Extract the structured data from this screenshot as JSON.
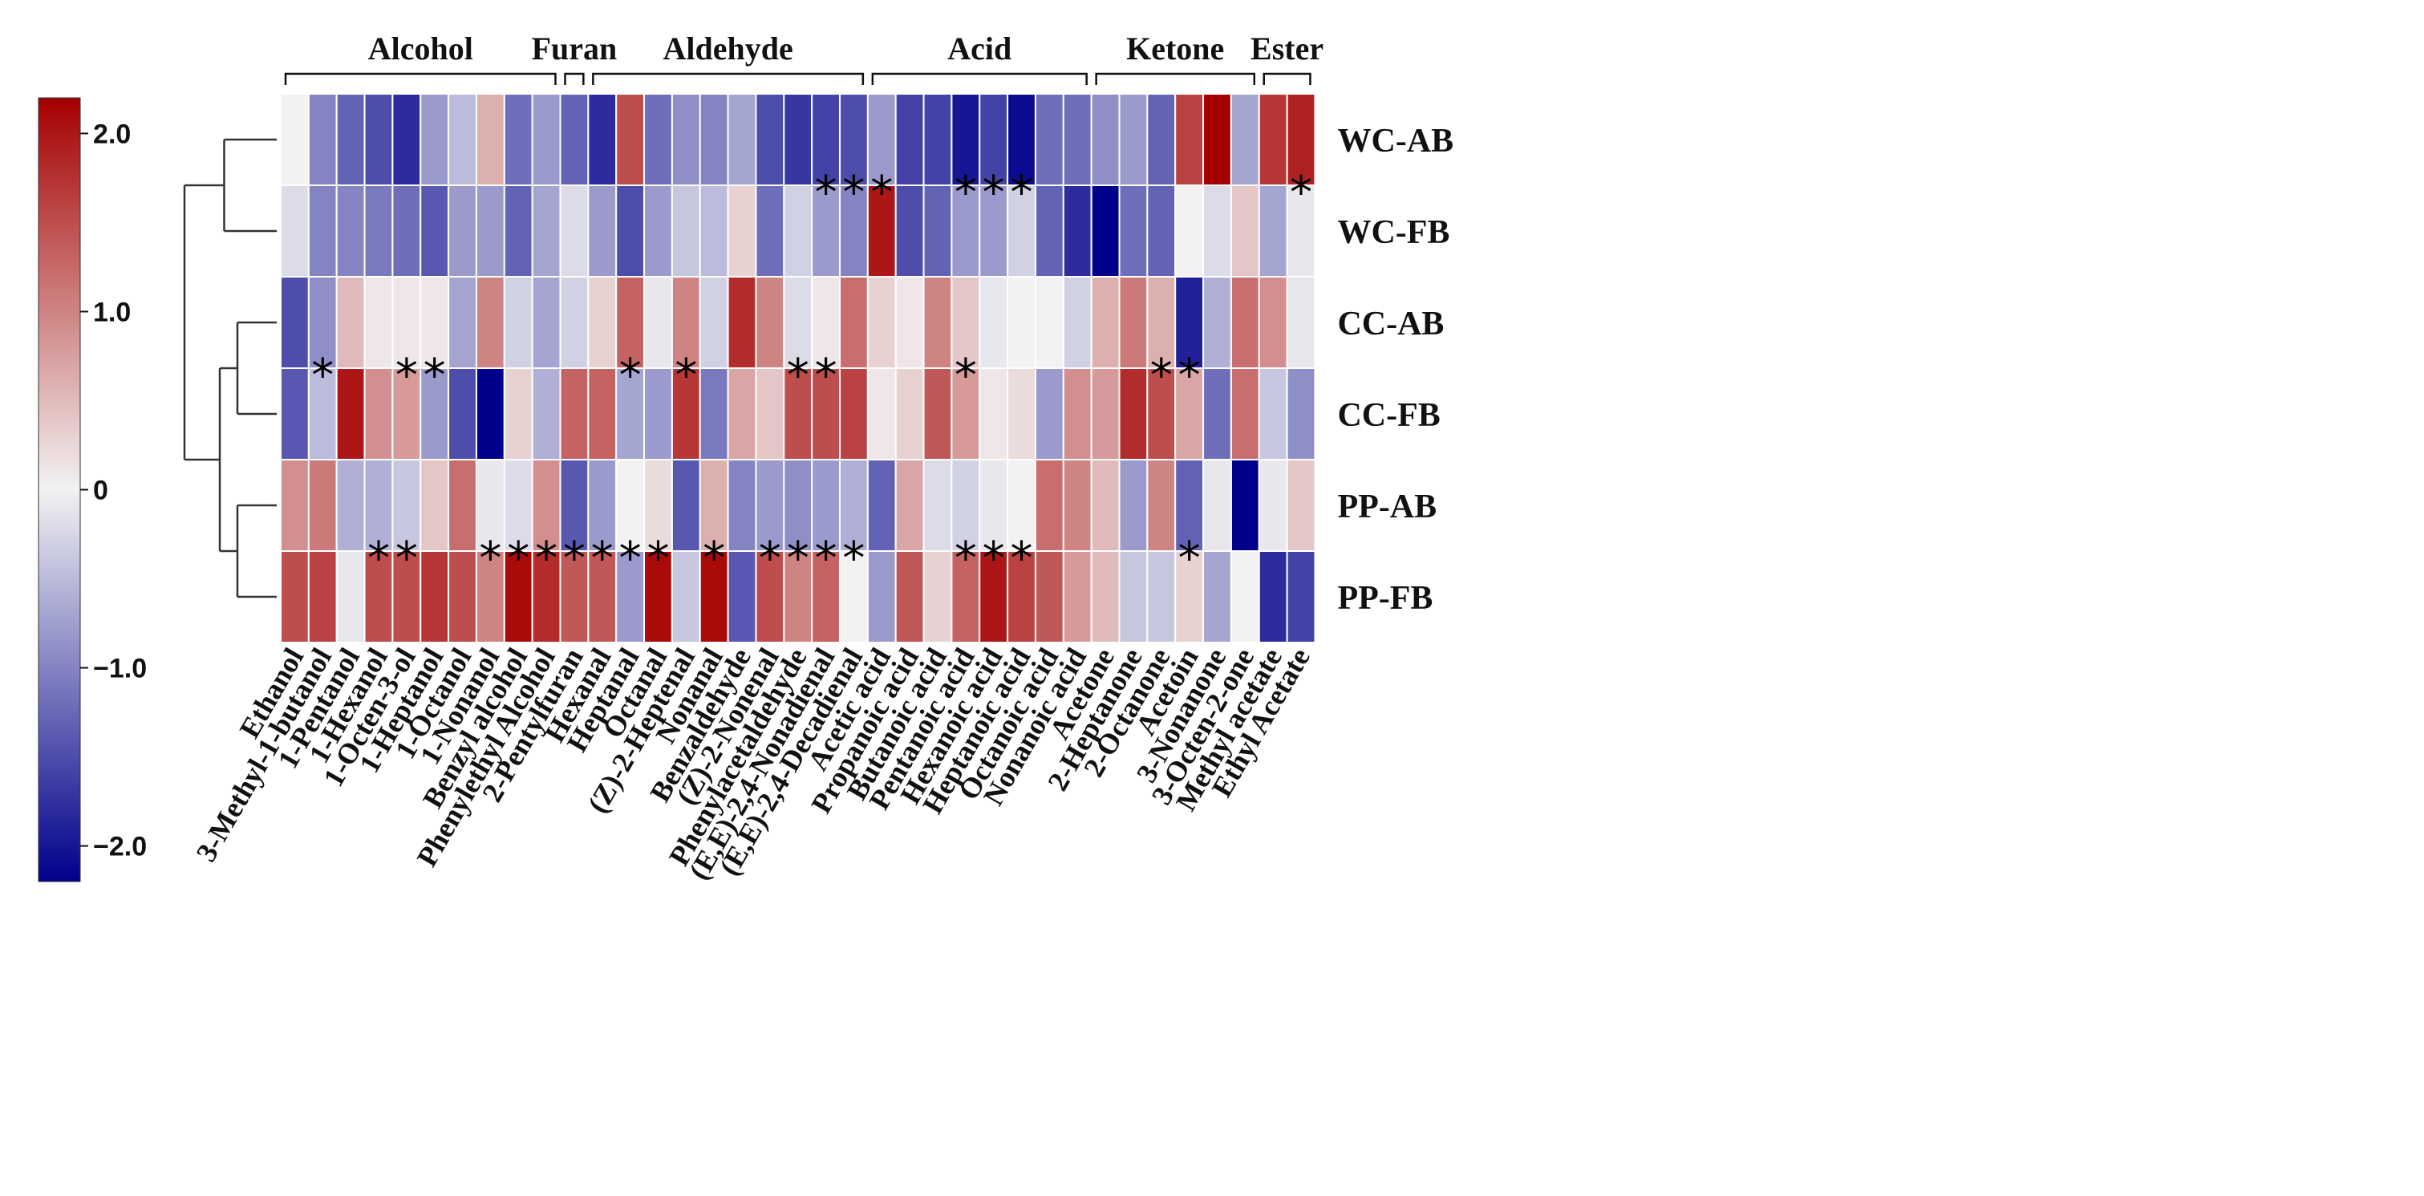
{
  "chart_data": {
    "type": "heatmap",
    "title": "",
    "colormap": {
      "name": "blue-white-red",
      "low": "#00008B",
      "mid": "#F2F2F2",
      "high": "#A50000",
      "vmin": -2.2,
      "vmax": 2.2,
      "ticks": [
        2.0,
        1.0,
        0,
        -1.0,
        -2.0
      ],
      "tick_labels": [
        "2.0",
        "1.0",
        "0",
        "−1.0",
        "−2.0"
      ]
    },
    "rows": [
      "WC-AB",
      "WC-FB",
      "CC-AB",
      "CC-FB",
      "PP-AB",
      "PP-FB"
    ],
    "columns": [
      "Ethanol",
      "3-Methyl-1-butanol",
      "1-Pentanol",
      "1-Hexanol",
      "1-Octen-3-ol",
      "1-Heptanol",
      "1-Octanol",
      "1-Nonanol",
      "Benzyl alcohol",
      "Phenylethyl Alcohol",
      "2-Pentylfuran",
      "Hexanal",
      "Heptanal",
      "Octanal",
      "(Z)-2-Heptenal",
      "Nonanal",
      "Benzaldehyde",
      "(Z)-2-Nonenal",
      "Phenylacetaldehyde",
      "(E,E)-2,4-Nonadienal",
      "(E,E)-2,4-Decadienal",
      "Acetic acid",
      "Propanoic acid",
      "Butanoic acid",
      "Pentanoic acid",
      "Hexanoic acid",
      "Heptanoic acid",
      "Octanoic acid",
      "Nonanoic acid",
      "Acetone",
      "2-Heptanone",
      "2-Octanone",
      "Acetoin",
      "3-Nonanone",
      "3-Octen-2-one",
      "Methyl acetate",
      "Ethyl Acetate"
    ],
    "groups": [
      {
        "name": "Alcohol",
        "start": 0,
        "end": 9
      },
      {
        "name": "Furan",
        "start": 10,
        "end": 10
      },
      {
        "name": "Aldehyde",
        "start": 11,
        "end": 20
      },
      {
        "name": "Acid",
        "start": 21,
        "end": 28
      },
      {
        "name": "Ketone",
        "start": 29,
        "end": 34
      },
      {
        "name": "Ester",
        "start": 35,
        "end": 36
      }
    ],
    "values": [
      [
        0.0,
        -1.0,
        -1.3,
        -1.5,
        -1.8,
        -0.8,
        -0.5,
        0.6,
        -1.2,
        -0.8,
        -1.3,
        -1.8,
        1.5,
        -1.2,
        -0.9,
        -1.0,
        -0.7,
        -1.5,
        -1.7,
        -1.6,
        -1.5,
        -0.8,
        -1.6,
        -1.6,
        -2.0,
        -1.6,
        -2.1,
        -1.2,
        -1.2,
        -0.9,
        -0.8,
        -1.3,
        1.6,
        2.2,
        -0.7,
        1.7,
        1.9
      ],
      [
        -0.2,
        -1.0,
        -1.0,
        -1.1,
        -1.2,
        -1.4,
        -0.8,
        -0.8,
        -1.3,
        -0.7,
        -0.2,
        -0.8,
        -1.5,
        -0.8,
        -0.4,
        -0.5,
        0.3,
        -1.2,
        -0.3,
        -0.8,
        -1.0,
        2.0,
        -1.5,
        -1.3,
        -0.8,
        -0.8,
        -0.3,
        -1.3,
        -1.8,
        -2.2,
        -1.2,
        -1.3,
        0.0,
        -0.2,
        0.4,
        -0.7,
        -0.1
      ],
      [
        -1.5,
        -0.9,
        0.5,
        0.1,
        0.1,
        0.1,
        -0.7,
        1.0,
        -0.3,
        -0.7,
        -0.3,
        0.3,
        1.3,
        -0.1,
        1.0,
        -0.3,
        1.8,
        1.0,
        -0.2,
        0.1,
        1.2,
        0.3,
        0.1,
        1.0,
        0.4,
        -0.1,
        0.0,
        0.0,
        -0.3,
        0.6,
        1.1,
        0.6,
        -1.9,
        -0.6,
        1.2,
        0.9,
        -0.1
      ],
      [
        -1.4,
        -0.5,
        2.0,
        0.9,
        0.8,
        -0.8,
        -1.5,
        -2.2,
        0.3,
        -0.6,
        1.3,
        1.3,
        -0.7,
        -0.8,
        1.7,
        -1.1,
        0.7,
        0.4,
        1.5,
        1.5,
        1.6,
        0.1,
        0.3,
        1.4,
        0.8,
        0.1,
        0.2,
        -0.8,
        0.9,
        0.8,
        1.8,
        1.5,
        0.7,
        -1.2,
        1.2,
        -0.4,
        -0.9
      ],
      [
        0.9,
        1.1,
        -0.6,
        -0.6,
        -0.4,
        0.4,
        1.2,
        -0.1,
        -0.2,
        0.9,
        -1.4,
        -0.8,
        0.0,
        0.2,
        -1.4,
        0.6,
        -1.0,
        -0.8,
        -0.9,
        -0.8,
        -0.6,
        -1.3,
        0.7,
        -0.2,
        -0.3,
        -0.1,
        0.0,
        1.2,
        1.0,
        0.5,
        -0.8,
        1.0,
        -1.3,
        -0.1,
        -2.2,
        -0.1,
        0.4
      ],
      [
        1.5,
        1.6,
        -0.1,
        1.5,
        1.5,
        1.7,
        1.5,
        1.0,
        2.1,
        1.8,
        1.4,
        1.4,
        -0.8,
        2.1,
        -0.4,
        2.1,
        -1.4,
        1.5,
        1.0,
        1.3,
        0.0,
        -0.8,
        1.4,
        0.3,
        1.3,
        2.0,
        1.6,
        1.4,
        0.8,
        0.5,
        -0.4,
        -0.4,
        0.3,
        -0.7,
        0.0,
        -1.8,
        -1.6
      ]
    ],
    "significance": [
      [
        19,
        20,
        21,
        24,
        25,
        26,
        36
      ],
      [
        1,
        4,
        5,
        12,
        14,
        18,
        19,
        24,
        31,
        32
      ],
      [
        3,
        4,
        7,
        8,
        9,
        10,
        11,
        12,
        13,
        15,
        17,
        18,
        19,
        20,
        24,
        25,
        26,
        32
      ]
    ],
    "significance_note": "asterisks drawn on the boundary between row pairs (WC-AB/WC-FB, CC-AB/CC-FB, PP-AB/PP-FB); indices refer to columns",
    "dendrogram": {
      "leaves": [
        "WC-AB",
        "WC-FB",
        "CC-AB",
        "CC-FB",
        "PP-AB",
        "PP-FB"
      ],
      "merges": [
        {
          "left": "WC-AB",
          "right": "WC-FB",
          "height": 0.55
        },
        {
          "left": "CC-AB",
          "right": "CC-FB",
          "height": 0.4
        },
        {
          "left": "PP-AB",
          "right": "PP-FB",
          "height": 0.4
        },
        {
          "left": "CC",
          "right": "PP",
          "height": 0.6
        },
        {
          "left": "WC",
          "right": "CC+PP",
          "height": 1.0
        }
      ]
    },
    "significance_symbol": "*"
  }
}
